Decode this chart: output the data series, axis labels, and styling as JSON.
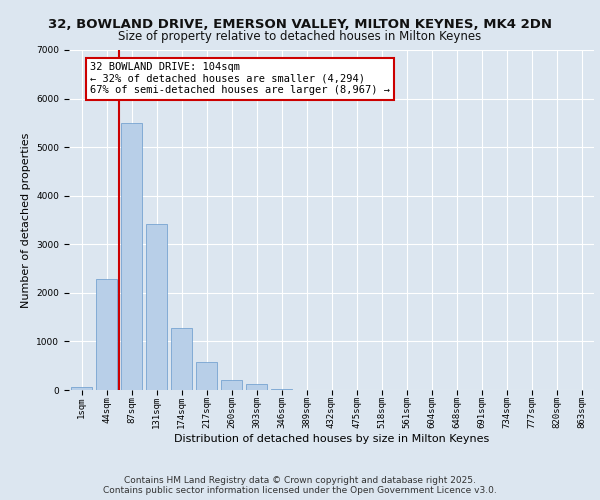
{
  "title_line1": "32, BOWLAND DRIVE, EMERSON VALLEY, MILTON KEYNES, MK4 2DN",
  "title_line2": "Size of property relative to detached houses in Milton Keynes",
  "xlabel": "Distribution of detached houses by size in Milton Keynes",
  "ylabel": "Number of detached properties",
  "categories": [
    "1sqm",
    "44sqm",
    "87sqm",
    "131sqm",
    "174sqm",
    "217sqm",
    "260sqm",
    "303sqm",
    "346sqm",
    "389sqm",
    "432sqm",
    "475sqm",
    "518sqm",
    "561sqm",
    "604sqm",
    "648sqm",
    "691sqm",
    "734sqm",
    "777sqm",
    "820sqm",
    "863sqm"
  ],
  "values": [
    70,
    2280,
    5500,
    3420,
    1280,
    580,
    200,
    120,
    30,
    8,
    3,
    2,
    1,
    0,
    0,
    0,
    0,
    0,
    0,
    0,
    0
  ],
  "bar_color": "#b8cfe8",
  "bar_edge_color": "#6699cc",
  "vline_color": "#cc0000",
  "vline_bar_index": 2,
  "annotation_line1": "32 BOWLAND DRIVE: 104sqm",
  "annotation_line2": "← 32% of detached houses are smaller (4,294)",
  "annotation_line3": "67% of semi-detached houses are larger (8,967) →",
  "annotation_box_color": "white",
  "annotation_box_edge": "#cc0000",
  "ylim": [
    0,
    7000
  ],
  "yticks": [
    0,
    1000,
    2000,
    3000,
    4000,
    5000,
    6000,
    7000
  ],
  "background_color": "#dce6f0",
  "plot_background": "#dce6f0",
  "footer_line1": "Contains HM Land Registry data © Crown copyright and database right 2025.",
  "footer_line2": "Contains public sector information licensed under the Open Government Licence v3.0.",
  "grid_color": "white",
  "title_fontsize": 9.5,
  "subtitle_fontsize": 8.5,
  "xlabel_fontsize": 8,
  "ylabel_fontsize": 8,
  "tick_fontsize": 6.5,
  "annotation_fontsize": 7.5,
  "footer_fontsize": 6.5
}
